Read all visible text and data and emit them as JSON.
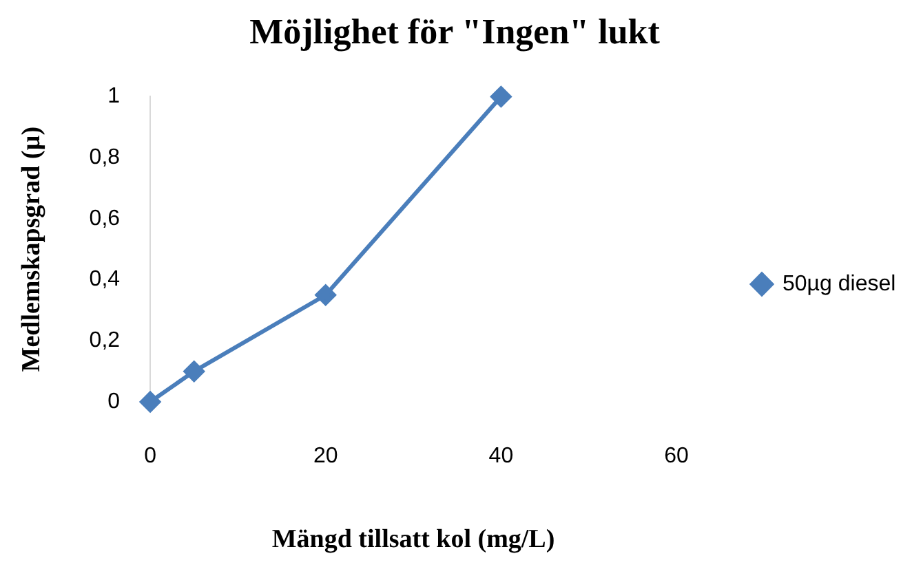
{
  "chart_data": {
    "type": "line",
    "title": "Möjlighet för \"Ingen\" lukt",
    "xlabel": "Mängd tillsatt kol (mg/L)",
    "ylabel": "Medlemskapsgrad (µ)",
    "x": [
      0,
      5,
      20,
      40
    ],
    "series": [
      {
        "name": "50µg diesel",
        "color": "#4a7ebb",
        "values": [
          0,
          0.1,
          0.35,
          1
        ]
      }
    ],
    "xlim": [
      0,
      60
    ],
    "xticks": [
      0,
      20,
      40,
      60
    ],
    "ylim": [
      0,
      1
    ],
    "yticks": [
      0,
      {
        "value": 0.2,
        "label": "0,2"
      },
      {
        "value": 0.4,
        "label": "0,4"
      },
      {
        "value": 0.6,
        "label": "0,6"
      },
      {
        "value": 0.8,
        "label": "0,8"
      },
      1
    ],
    "grid": false,
    "legend": "right",
    "marker": "diamond",
    "line_style": "solid"
  }
}
